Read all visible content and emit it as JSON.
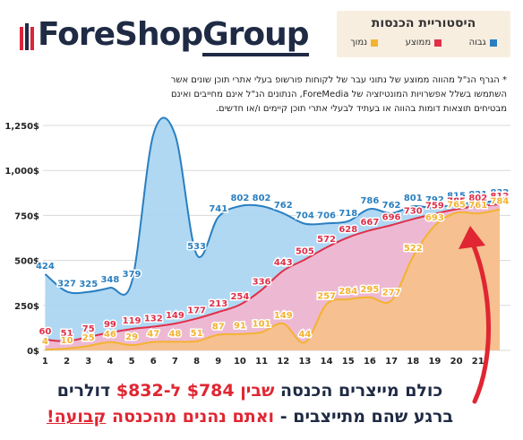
{
  "logo": {
    "first": "ForeShop",
    "second": "Group"
  },
  "note": [
    "* הגרף הנ\"ל מהווה ממוצע של נתוני עבר של לקוחות פורשופ בעלי אתרי תוכן שונים אשר",
    "השתמשו בשלל אפשרויות המונטיזציה של ForeMedia, הנתונים הנ\"ל אינם מחייבים ואינם",
    "מבטיחים תוצאות דומות בהווה או בעתיד לבעלי אתרי תוכן קיימים ו/או חדשים."
  ],
  "annotation": {
    "line1": [
      "כולם מייצרים הכנסה ",
      "שבין $784 ל-$832",
      " דולרים"
    ],
    "line2": [
      "ברגע שהם מתייצבים - ",
      "ואתם נהנים מהכנסה ",
      "קבועה!"
    ]
  },
  "chart_data": {
    "type": "area",
    "title": "היסטוריית הכנסות",
    "x": [
      1,
      2,
      3,
      4,
      5,
      6,
      7,
      8,
      9,
      10,
      11,
      12,
      13,
      14,
      15,
      16,
      17,
      18,
      19,
      20,
      21,
      22
    ],
    "xlim": [
      0.9,
      22.5
    ],
    "xticks": [
      1,
      2,
      3,
      4,
      5,
      6,
      7,
      8,
      9,
      10,
      11,
      12,
      13,
      14,
      15,
      16,
      17,
      18,
      19,
      20,
      21
    ],
    "ylim": [
      0,
      1300
    ],
    "yticks": [
      {
        "value": 0,
        "label": "0$"
      },
      {
        "value": 250,
        "label": "250$"
      },
      {
        "value": 500,
        "label": "500$"
      },
      {
        "value": 750,
        "label": "750$"
      },
      {
        "value": 1000,
        "label": "1,000$"
      },
      {
        "value": 1250,
        "label": "1,250$"
      }
    ],
    "grid": true,
    "series": [
      {
        "name": "גבוה",
        "color": "#2a7fc0",
        "fill": "#a9d5f2",
        "values": [
          424,
          327,
          325,
          348,
          379,
          1200,
          1200,
          533,
          741,
          802,
          802,
          762,
          704,
          706,
          718,
          786,
          762,
          801,
          792,
          815,
          821,
          832
        ],
        "value_labels": [
          "424",
          "327",
          "325",
          "348",
          "379",
          null,
          null,
          "533",
          "741",
          "802",
          "802",
          "762",
          "704",
          "706",
          "718",
          "786",
          "762",
          "801",
          "792",
          "815",
          "821",
          "832"
        ]
      },
      {
        "name": "ממוצע",
        "color": "#e0304a",
        "fill": "#f2b6cf",
        "values": [
          60,
          51,
          75,
          99,
          119,
          132,
          149,
          177,
          213,
          254,
          336,
          443,
          505,
          572,
          628,
          667,
          696,
          730,
          759,
          785,
          802,
          812
        ]
      },
      {
        "name": "נמוך",
        "color": "#f3b331",
        "fill": "#f6c08a",
        "values": [
          4,
          10,
          25,
          46,
          29,
          47,
          48,
          51,
          87,
          91,
          101,
          149,
          44,
          257,
          284,
          295,
          277,
          522,
          693,
          765,
          761,
          784
        ]
      }
    ]
  }
}
